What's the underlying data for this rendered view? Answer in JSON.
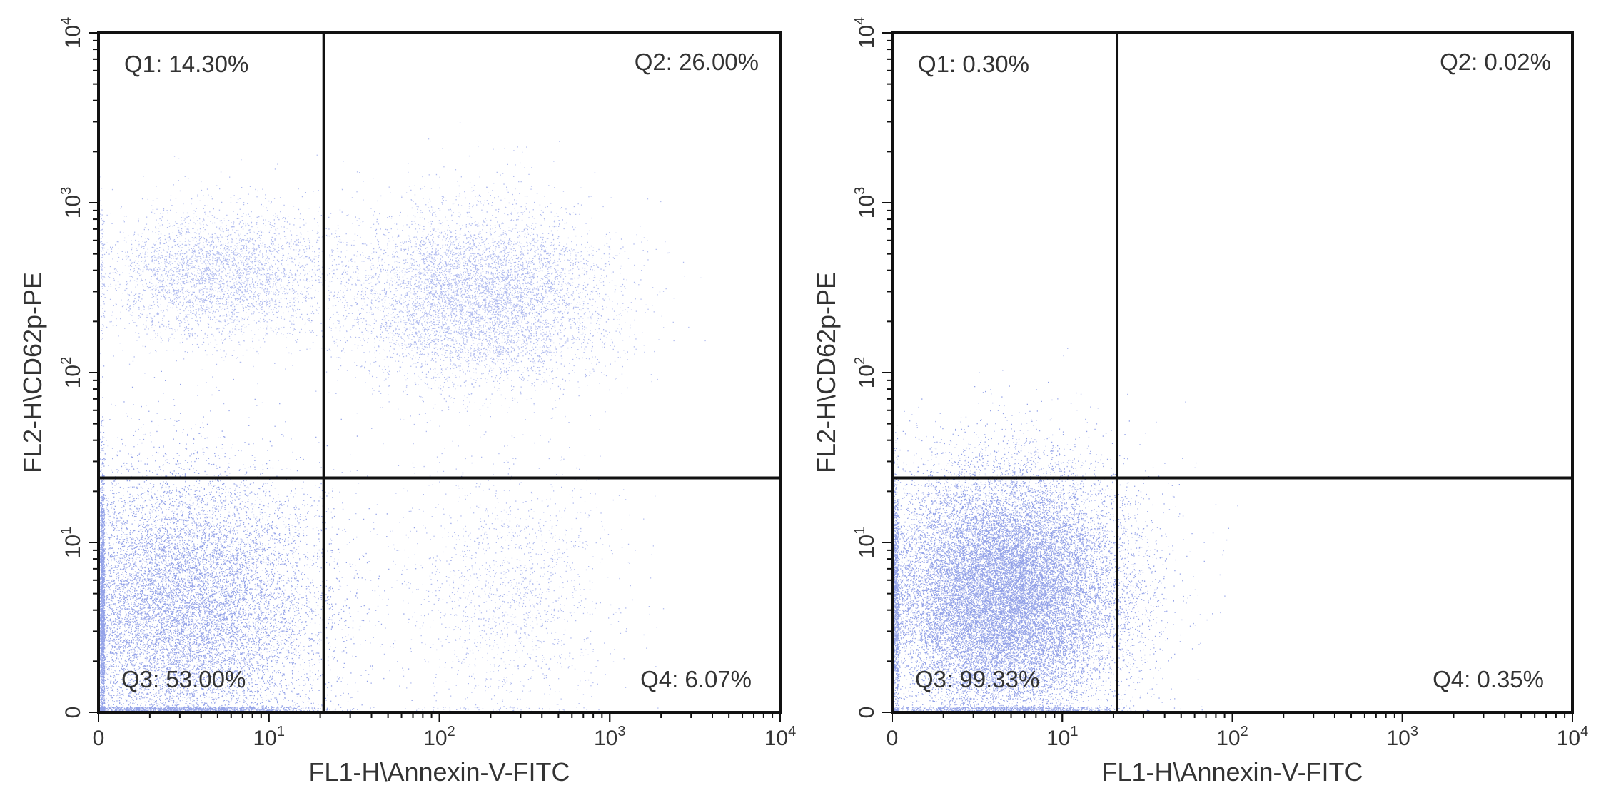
{
  "colors": {
    "dots": "#3a55d6",
    "axis": "#111111",
    "text": "#333333",
    "background": "#ffffff"
  },
  "chart_data": [
    {
      "type": "scatter",
      "title": "",
      "xlabel": "FL1-H\\Annexin-V-FITC",
      "ylabel": "FL2-H\\CD62p-PE",
      "scale": "log",
      "xlim": [
        1,
        10000
      ],
      "ylim": [
        1,
        10000
      ],
      "x_ticks": [
        {
          "value": 1,
          "base": "0",
          "exp": ""
        },
        {
          "value": 10,
          "base": "10",
          "exp": "1"
        },
        {
          "value": 100,
          "base": "10",
          "exp": "2"
        },
        {
          "value": 1000,
          "base": "10",
          "exp": "3"
        },
        {
          "value": 10000,
          "base": "10",
          "exp": "4"
        }
      ],
      "y_ticks": [
        {
          "value": 1,
          "base": "0",
          "exp": ""
        },
        {
          "value": 10,
          "base": "10",
          "exp": "1"
        },
        {
          "value": 100,
          "base": "10",
          "exp": "2"
        },
        {
          "value": 1000,
          "base": "10",
          "exp": "3"
        },
        {
          "value": 10000,
          "base": "10",
          "exp": "4"
        }
      ],
      "gate": {
        "x": 21,
        "y": 24
      },
      "quadrants": [
        {
          "id": "Q1",
          "label": "Q1: 14.30%",
          "value": 14.3
        },
        {
          "id": "Q2",
          "label": "Q2: 26.00%",
          "value": 26.0
        },
        {
          "id": "Q3",
          "label": "Q3: 53.00%",
          "value": 53.0
        },
        {
          "id": "Q4",
          "label": "Q4: 6.07%",
          "value": 6.07
        }
      ],
      "populations": [
        {
          "x": 3,
          "y": 4,
          "sx": 0.42,
          "sy": 0.42,
          "weight": 0.53,
          "dense": true
        },
        {
          "x": 5,
          "y": 380,
          "sx": 0.34,
          "sy": 0.2,
          "weight": 0.14
        },
        {
          "x": 170,
          "y": 280,
          "sx": 0.38,
          "sy": 0.26,
          "weight": 0.26
        },
        {
          "x": 250,
          "y": 5,
          "sx": 0.32,
          "sy": 0.38,
          "weight": 0.06
        }
      ]
    },
    {
      "type": "scatter",
      "title": "",
      "xlabel": "FL1-H\\Annexin-V-FITC",
      "ylabel": "FL2-H\\CD62p-PE",
      "scale": "log",
      "xlim": [
        1,
        10000
      ],
      "ylim": [
        1,
        10000
      ],
      "x_ticks": [
        {
          "value": 1,
          "base": "0",
          "exp": ""
        },
        {
          "value": 10,
          "base": "10",
          "exp": "1"
        },
        {
          "value": 100,
          "base": "10",
          "exp": "2"
        },
        {
          "value": 1000,
          "base": "10",
          "exp": "3"
        },
        {
          "value": 10000,
          "base": "10",
          "exp": "4"
        }
      ],
      "y_ticks": [
        {
          "value": 1,
          "base": "0",
          "exp": ""
        },
        {
          "value": 10,
          "base": "10",
          "exp": "1"
        },
        {
          "value": 100,
          "base": "10",
          "exp": "2"
        },
        {
          "value": 1000,
          "base": "10",
          "exp": "3"
        },
        {
          "value": 10000,
          "base": "10",
          "exp": "4"
        }
      ],
      "gate": {
        "x": 21,
        "y": 24
      },
      "quadrants": [
        {
          "id": "Q1",
          "label": "Q1: 0.30%",
          "value": 0.3
        },
        {
          "id": "Q2",
          "label": "Q2: 0.02%",
          "value": 0.02
        },
        {
          "id": "Q3",
          "label": "Q3: 99.33%",
          "value": 99.33
        },
        {
          "id": "Q4",
          "label": "Q4: 0.35%",
          "value": 0.35
        }
      ],
      "populations": [
        {
          "x": 4.5,
          "y": 5,
          "sx": 0.36,
          "sy": 0.36,
          "weight": 1.0,
          "dense": true
        }
      ]
    }
  ]
}
